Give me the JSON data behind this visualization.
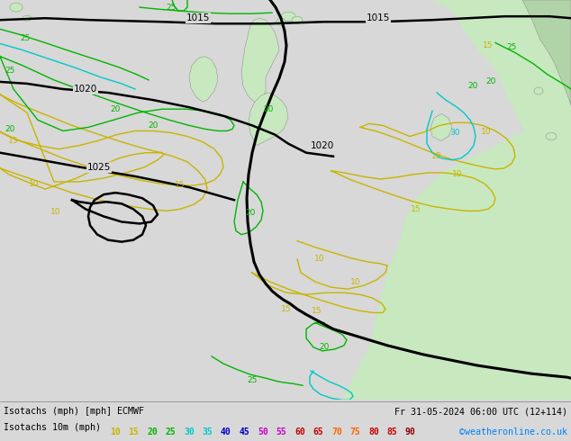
{
  "title_left": "Isotachs (mph) [mph] ECMWF",
  "title_right": "Fr 31-05-2024 06:00 UTC (12+114)",
  "legend_label": "Isotachs 10m (mph)",
  "copyright": "©weatheronline.co.uk",
  "legend_values": [
    10,
    15,
    20,
    25,
    30,
    35,
    40,
    45,
    50,
    55,
    60,
    65,
    70,
    75,
    80,
    85,
    90
  ],
  "legend_colors": [
    "#c8b400",
    "#c8b400",
    "#00b400",
    "#00b400",
    "#00c8c8",
    "#00c8c8",
    "#0000c8",
    "#0000c8",
    "#c800c8",
    "#c800c8",
    "#c80000",
    "#c80000",
    "#ff6400",
    "#ff6400",
    "#c80000",
    "#c80000",
    "#960000"
  ],
  "bg_color": "#d8d8d8",
  "sea_color": "#d8d8d8",
  "land_color_light": "#c8e8c0",
  "land_color_dark": "#90c890",
  "figsize": [
    6.34,
    4.9
  ],
  "dpi": 100
}
